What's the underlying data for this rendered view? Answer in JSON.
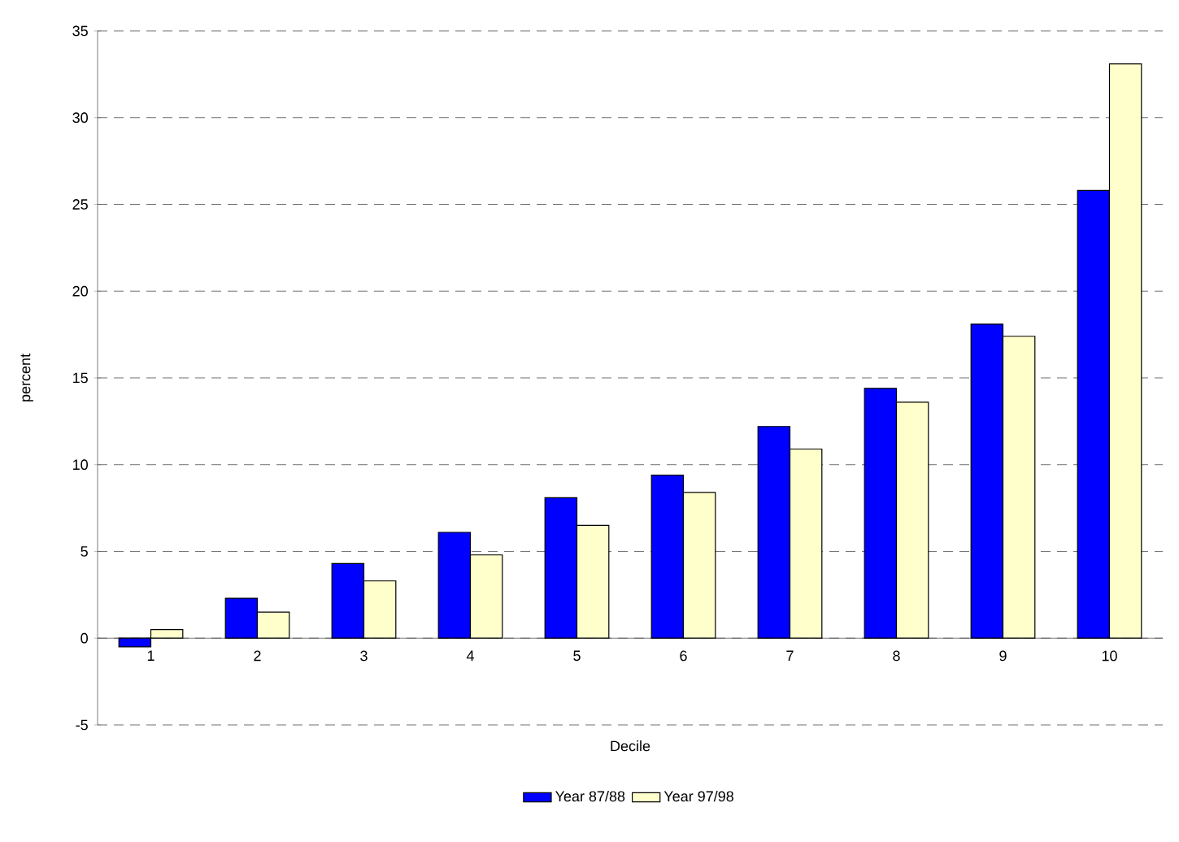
{
  "chart_data": {
    "type": "bar",
    "xlabel": "Decile",
    "ylabel": "percent",
    "categories": [
      "1",
      "2",
      "3",
      "4",
      "5",
      "6",
      "7",
      "8",
      "9",
      "10"
    ],
    "series": [
      {
        "name": "Year 87/88",
        "color": "#0000ff",
        "values": [
          -0.5,
          2.3,
          4.3,
          6.1,
          8.1,
          9.4,
          12.2,
          14.4,
          18.1,
          25.8
        ]
      },
      {
        "name": "Year 97/98",
        "color": "#ffffcc",
        "values": [
          0.5,
          1.5,
          3.3,
          4.8,
          6.5,
          8.4,
          10.9,
          13.6,
          17.4,
          33.1
        ]
      }
    ],
    "ylim": [
      -5,
      35
    ],
    "yticks": [
      -5,
      0,
      5,
      10,
      15,
      20,
      25,
      30,
      35
    ],
    "grid": "y",
    "legend": "bottom"
  }
}
